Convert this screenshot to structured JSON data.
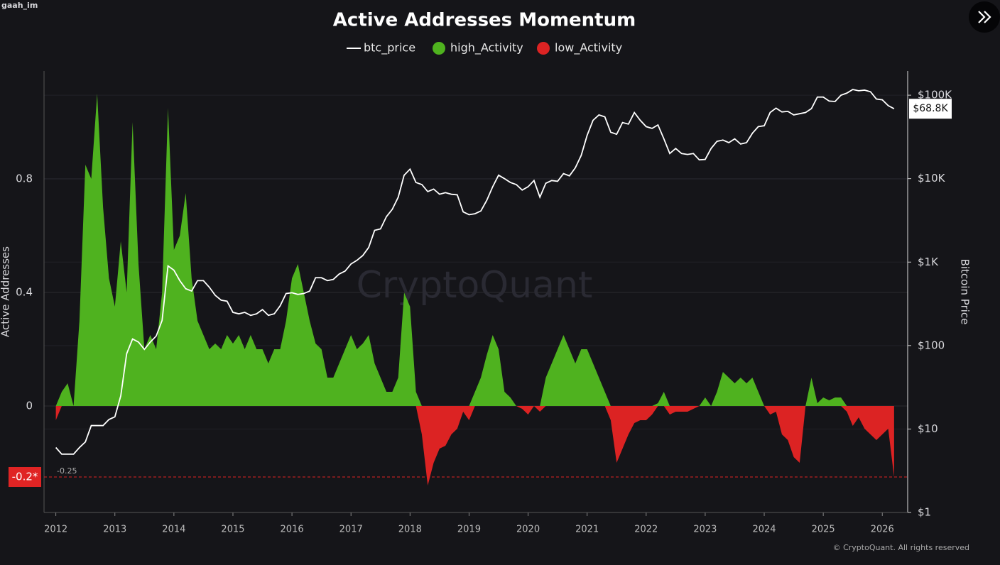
{
  "chart_data": {
    "type": "area",
    "title": "Active Addresses Momentum",
    "corner_label": "gaah_im",
    "watermark": "CryptoQuant",
    "copyright": "© CryptoQuant. All rights reserved",
    "y_axis_label": "Active Addresses",
    "y2_axis_label": "Bitcoin Price",
    "legend_position": "top",
    "grid": true,
    "y2_log": true,
    "xlim": [
      2011.8,
      2026.43
    ],
    "ylim": [
      -0.375,
      1.18
    ],
    "y2lim": [
      1,
      195000
    ],
    "xticks": [
      2012,
      2013,
      2014,
      2015,
      2016,
      2017,
      2018,
      2019,
      2020,
      2021,
      2022,
      2023,
      2024,
      2025,
      2026
    ],
    "yticks": [
      0.8,
      0.4,
      0
    ],
    "y2ticks": [
      {
        "value": 1,
        "label": "$1"
      },
      {
        "value": 10,
        "label": "$10"
      },
      {
        "value": 100,
        "label": "$100"
      },
      {
        "value": 1000,
        "label": "$1K"
      },
      {
        "value": 10000,
        "label": "$10K"
      },
      {
        "value": 100000,
        "label": "$100K"
      }
    ],
    "reference_line": {
      "value": -0.25,
      "label": "-0.25",
      "color": "#e02424"
    },
    "y_marker": {
      "value": -0.25,
      "label": "-0.2*"
    },
    "last_price": {
      "value": 68800,
      "label": "$68.8K"
    },
    "x": [
      2012,
      2012.1,
      2012.2,
      2012.3,
      2012.4,
      2012.5,
      2012.6,
      2012.7,
      2012.8,
      2012.9,
      2013,
      2013.1,
      2013.2,
      2013.3,
      2013.4,
      2013.5,
      2013.6,
      2013.7,
      2013.8,
      2013.9,
      2014,
      2014.1,
      2014.2,
      2014.3,
      2014.4,
      2014.5,
      2014.6,
      2014.7,
      2014.8,
      2014.9,
      2015,
      2015.1,
      2015.2,
      2015.3,
      2015.4,
      2015.5,
      2015.6,
      2015.7,
      2015.8,
      2015.9,
      2016,
      2016.1,
      2016.2,
      2016.3,
      2016.4,
      2016.5,
      2016.6,
      2016.7,
      2016.8,
      2016.9,
      2017,
      2017.1,
      2017.2,
      2017.3,
      2017.4,
      2017.5,
      2017.6,
      2017.7,
      2017.8,
      2017.9,
      2018,
      2018.1,
      2018.2,
      2018.3,
      2018.4,
      2018.5,
      2018.6,
      2018.7,
      2018.8,
      2018.9,
      2019,
      2019.1,
      2019.2,
      2019.3,
      2019.4,
      2019.5,
      2019.6,
      2019.7,
      2019.8,
      2019.9,
      2020,
      2020.1,
      2020.2,
      2020.3,
      2020.4,
      2020.5,
      2020.6,
      2020.7,
      2020.8,
      2020.9,
      2021,
      2021.1,
      2021.2,
      2021.3,
      2021.4,
      2021.5,
      2021.6,
      2021.7,
      2021.8,
      2021.9,
      2022,
      2022.1,
      2022.2,
      2022.3,
      2022.4,
      2022.5,
      2022.6,
      2022.7,
      2022.8,
      2022.9,
      2023,
      2023.1,
      2023.2,
      2023.3,
      2023.4,
      2023.5,
      2023.6,
      2023.7,
      2023.8,
      2023.9,
      2024,
      2024.1,
      2024.2,
      2024.3,
      2024.4,
      2024.5,
      2024.6,
      2024.7,
      2024.8,
      2024.9,
      2025,
      2025.1,
      2025.2,
      2025.3,
      2025.4,
      2025.5,
      2025.6,
      2025.7,
      2025.8,
      2025.9,
      2026,
      2026.1,
      2026.2
    ],
    "series": [
      {
        "name": "btc_price",
        "color": "#ffffff",
        "axis": "y2",
        "values": [
          6,
          5,
          5,
          5,
          6,
          7,
          11,
          11,
          11,
          13,
          14,
          25,
          80,
          120,
          110,
          90,
          110,
          130,
          200,
          900,
          800,
          600,
          480,
          450,
          600,
          600,
          500,
          400,
          350,
          340,
          250,
          240,
          250,
          230,
          240,
          270,
          230,
          240,
          300,
          420,
          430,
          410,
          420,
          450,
          650,
          650,
          600,
          620,
          720,
          780,
          950,
          1050,
          1200,
          1500,
          2400,
          2500,
          3500,
          4300,
          6000,
          11000,
          13000,
          9000,
          8500,
          7000,
          7500,
          6500,
          6800,
          6500,
          6400,
          4000,
          3700,
          3800,
          4100,
          5500,
          8000,
          11000,
          10000,
          9000,
          8500,
          7300,
          8000,
          9500,
          6000,
          8800,
          9500,
          9300,
          11500,
          10800,
          13500,
          19000,
          33000,
          50000,
          58000,
          55000,
          36000,
          34000,
          47000,
          45000,
          62000,
          50000,
          42000,
          40000,
          44000,
          30000,
          20000,
          23000,
          20000,
          19500,
          20000,
          16800,
          17000,
          23000,
          28000,
          29000,
          27000,
          30000,
          26000,
          27000,
          35000,
          42000,
          43000,
          62000,
          70000,
          63000,
          64000,
          58000,
          60000,
          62000,
          69000,
          95000,
          95000,
          85000,
          84000,
          100000,
          106000,
          117000,
          113000,
          115000,
          110000,
          90000,
          88000,
          75000,
          68800
        ]
      },
      {
        "name": "high_Activity",
        "color": "#4fb21f",
        "values": [
          0,
          0.05,
          0.08,
          0,
          0.3,
          0.85,
          0.8,
          1.1,
          0.7,
          0.45,
          0.35,
          0.58,
          0.4,
          1.0,
          0.5,
          0.2,
          0.25,
          0.2,
          0.4,
          1.05,
          0.55,
          0.6,
          0.75,
          0.45,
          0.3,
          0.25,
          0.2,
          0.22,
          0.2,
          0.25,
          0.22,
          0.25,
          0.2,
          0.25,
          0.2,
          0.2,
          0.15,
          0.2,
          0.2,
          0.3,
          0.45,
          0.5,
          0.4,
          0.3,
          0.22,
          0.2,
          0.1,
          0.1,
          0.15,
          0.2,
          0.25,
          0.2,
          0.22,
          0.25,
          0.15,
          0.1,
          0.05,
          0.05,
          0.1,
          0.4,
          0.35,
          0.05,
          0,
          0,
          0,
          0,
          0,
          0,
          0,
          0,
          0,
          0.05,
          0.1,
          0.18,
          0.25,
          0.2,
          0.05,
          0.03,
          0,
          0,
          0,
          0,
          0,
          0.1,
          0.15,
          0.2,
          0.25,
          0.2,
          0.15,
          0.2,
          0.2,
          0.15,
          0.1,
          0.05,
          0,
          0,
          0,
          0,
          0,
          0,
          0,
          0,
          0.01,
          0.05,
          0,
          0,
          0,
          0,
          0,
          0,
          0.03,
          0,
          0.05,
          0.12,
          0.1,
          0.08,
          0.1,
          0.08,
          0.1,
          0.05,
          0,
          0,
          0,
          0,
          0,
          0,
          0,
          0,
          0.1,
          0.01,
          0.03,
          0.02,
          0.03,
          0.03,
          0,
          0,
          0,
          0,
          0,
          0,
          0,
          0,
          0
        ]
      },
      {
        "name": "low_Activity",
        "color": "#dc2323",
        "values": [
          -0.05,
          0,
          0,
          0,
          0,
          0,
          0,
          0,
          0,
          0,
          0,
          0,
          0,
          0,
          0,
          0,
          0,
          0,
          0,
          0,
          0,
          0,
          0,
          0,
          0,
          0,
          0,
          0,
          0,
          0,
          0,
          0,
          0,
          0,
          0,
          0,
          0,
          0,
          0,
          0,
          0,
          0,
          0,
          0,
          0,
          0,
          0,
          0,
          0,
          0,
          0,
          0,
          0,
          0,
          0,
          0,
          0,
          0,
          0,
          0,
          0,
          0,
          -0.1,
          -0.28,
          -0.2,
          -0.15,
          -0.14,
          -0.1,
          -0.08,
          -0.02,
          -0.05,
          0,
          0,
          0,
          0,
          0,
          0,
          0,
          0,
          -0.01,
          -0.03,
          0,
          -0.02,
          0,
          0,
          0,
          0,
          0,
          0,
          0,
          0,
          0,
          0,
          0,
          -0.05,
          -0.2,
          -0.15,
          -0.1,
          -0.06,
          -0.05,
          -0.05,
          -0.03,
          0,
          0,
          -0.03,
          -0.02,
          -0.02,
          -0.02,
          -0.01,
          0,
          0,
          0,
          0,
          0,
          0,
          0,
          0,
          0,
          0,
          0,
          0,
          -0.03,
          -0.02,
          -0.1,
          -0.12,
          -0.18,
          -0.2,
          0,
          0,
          0,
          0,
          0,
          0,
          0,
          -0.02,
          -0.07,
          -0.04,
          -0.08,
          -0.1,
          -0.12,
          -0.1,
          -0.08,
          -0.25
        ]
      }
    ]
  }
}
